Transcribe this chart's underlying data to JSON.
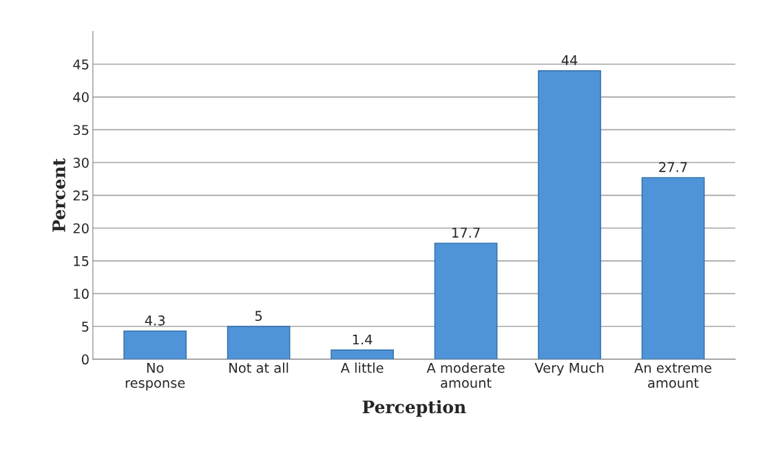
{
  "chart_data": {
    "type": "bar",
    "xlabel": "Perception",
    "ylabel": "Percent",
    "categories": [
      "No\nresponse",
      "Not at all",
      "A little",
      "A moderate\namount",
      "Very Much",
      "An extreme\namount"
    ],
    "values": [
      4.3,
      5,
      1.4,
      17.7,
      44,
      27.7
    ],
    "color": "#4f94d8",
    "ylim": [
      0,
      50
    ],
    "yticks": [
      0,
      5,
      10,
      15,
      20,
      25,
      30,
      35,
      40,
      45
    ],
    "grid": "y",
    "data_labels": true,
    "legend": false
  }
}
